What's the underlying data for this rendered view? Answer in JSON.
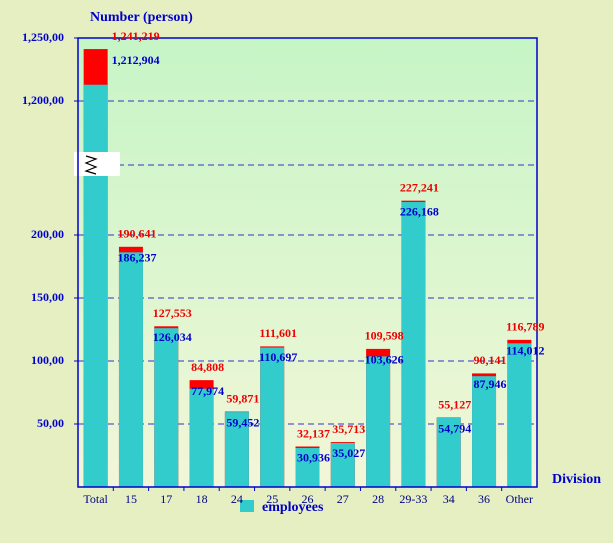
{
  "chart_data": {
    "type": "bar",
    "title": "Number (person)",
    "x_label": "Division",
    "categories": [
      "Total",
      "15",
      "17",
      "18",
      "24",
      "25",
      "26",
      "27",
      "28",
      "29-33",
      "34",
      "36",
      "Other"
    ],
    "series": [
      {
        "name": "employees",
        "color": "#33cccc",
        "values": [
          1212904,
          186237,
          126034,
          77974,
          59452,
          110697,
          30936,
          35027,
          103626,
          226168,
          54794,
          87946,
          114012
        ],
        "value_labels": [
          "1,212,904",
          "186,237",
          "126,034",
          "77,974",
          "59,452",
          "110,697",
          "30,936",
          "35,027",
          "103,626",
          "226,168",
          "54,794",
          "87,946",
          "114,012"
        ]
      },
      {
        "color": "#ff0000",
        "values": [
          1241219,
          190641,
          127553,
          84808,
          59871,
          111601,
          32137,
          35713,
          109598,
          227241,
          55127,
          90141,
          116789
        ],
        "value_labels": [
          "1,241,219",
          "190,641",
          "127,553",
          "84,808",
          "59,871",
          "111,601",
          "32,137",
          "35,713",
          "109,598",
          "227,241",
          "55,127",
          "90,141",
          "116,789"
        ]
      }
    ],
    "ylim": [
      0,
      1250000
    ],
    "ybreak": [
      250000,
      1150000
    ],
    "yticks": [
      {
        "value": 50000,
        "label": "50,00"
      },
      {
        "value": 100000,
        "label": "100,00"
      },
      {
        "value": 150000,
        "label": "150,00"
      },
      {
        "value": 200000,
        "label": "200,00"
      },
      {
        "value": 1200000,
        "label": "1,200,00"
      },
      {
        "value": 1250000,
        "label": "1,250,00"
      }
    ],
    "grid": true
  }
}
